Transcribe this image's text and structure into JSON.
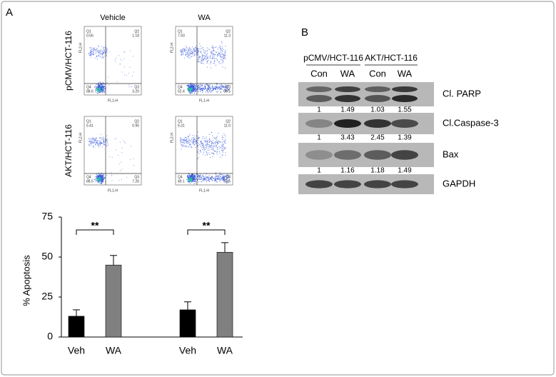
{
  "panel_a": {
    "label": "A"
  },
  "flow_cytometry": {
    "columns": [
      "Vehicle",
      "WA"
    ],
    "rows": [
      "pCMV/HCT-116",
      "AKT/HCT-116"
    ],
    "x_axis_label": "FL1-H",
    "y_axis_label": "FL2-H",
    "quadrant_names": [
      "Q1",
      "Q2",
      "Q4",
      "Q3"
    ],
    "plots": [
      {
        "quadrants": [
          "0.56",
          "1.18",
          "88.6",
          "3.20"
        ]
      },
      {
        "quadrants": [
          "7.93",
          "11.3",
          "52.4",
          "30.5"
        ]
      },
      {
        "quadrants": [
          "5.41",
          "0.95",
          "88.5",
          "7.26"
        ]
      },
      {
        "quadrants": [
          "6.31",
          "11.0",
          "49.1",
          "32.6"
        ]
      }
    ]
  },
  "chart_data": {
    "type": "bar",
    "categories": [
      "Veh",
      "WA",
      "Veh",
      "WA"
    ],
    "values": [
      13,
      45,
      17,
      53
    ],
    "errors": [
      4,
      6,
      5,
      6
    ],
    "colors": [
      "#000000",
      "#808080",
      "#000000",
      "#808080"
    ],
    "y_label": "% Apoptosis",
    "ylim": [
      0,
      75
    ],
    "yticks": [
      0,
      25,
      50,
      75
    ],
    "annotations": [
      "**",
      "**"
    ]
  },
  "panel_b": {
    "label": "B",
    "groups": [
      "pCMV/HCT-116",
      "AKT/HCT-116"
    ],
    "lanes": [
      "Con",
      "WA",
      "Con",
      "WA"
    ],
    "blots": [
      {
        "name": "Cl. PARP",
        "values": [
          1,
          1.49,
          1.03,
          1.55
        ]
      },
      {
        "name": "Cl.Caspase-3",
        "values": [
          1,
          3.43,
          2.45,
          1.39
        ]
      },
      {
        "name": "Bax",
        "values": [
          1,
          1.16,
          1.18,
          1.49
        ]
      },
      {
        "name": "GAPDH"
      }
    ]
  }
}
